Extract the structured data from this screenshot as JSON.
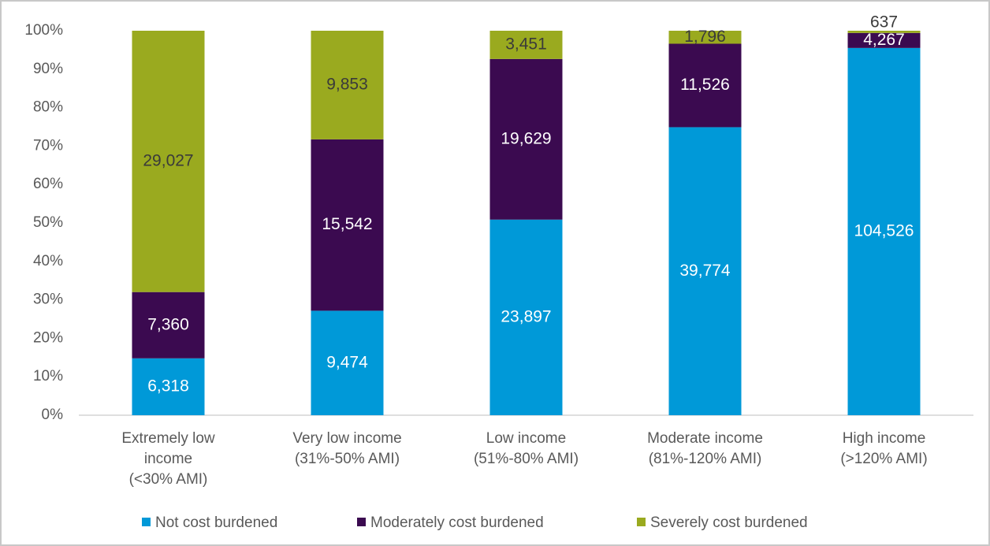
{
  "chart_data": {
    "type": "bar",
    "stacked": "percent",
    "categories": [
      "Extremely low\nincome\n(<30% AMI)",
      "Very low income\n(31%-50% AMI)",
      "Low income\n(51%-80% AMI)",
      "Moderate income\n(81%-120% AMI)",
      "High income\n(>120% AMI)"
    ],
    "series": [
      {
        "name": "Not cost burdened",
        "color": "#0099d8",
        "values": [
          6318,
          9474,
          23897,
          39774,
          104526
        ],
        "value_labels": [
          "6,318",
          "9,474",
          "23,897",
          "39,774",
          "104,526"
        ]
      },
      {
        "name": "Moderately cost burdened",
        "color": "#3b0a50",
        "values": [
          7360,
          15542,
          19629,
          11526,
          4267
        ],
        "value_labels": [
          "7,360",
          "15,542",
          "19,629",
          "11,526",
          "4,267"
        ]
      },
      {
        "name": "Severely cost burdened",
        "color": "#9aaa1f",
        "values": [
          29027,
          9853,
          3451,
          1796,
          637
        ],
        "value_labels": [
          "29,027",
          "9,853",
          "3,451",
          "1,796",
          "637"
        ]
      }
    ],
    "ylim": [
      0,
      100
    ],
    "yticks": [
      {
        "value": 0,
        "label": "0%"
      },
      {
        "value": 10,
        "label": "10%"
      },
      {
        "value": 20,
        "label": "20%"
      },
      {
        "value": 30,
        "label": "30%"
      },
      {
        "value": 40,
        "label": "40%"
      },
      {
        "value": 50,
        "label": "50%"
      },
      {
        "value": 60,
        "label": "60%"
      },
      {
        "value": 70,
        "label": "70%"
      },
      {
        "value": 80,
        "label": "80%"
      },
      {
        "value": 90,
        "label": "90%"
      },
      {
        "value": 100,
        "label": "100%"
      }
    ],
    "grid": false,
    "legend": "bottom"
  }
}
